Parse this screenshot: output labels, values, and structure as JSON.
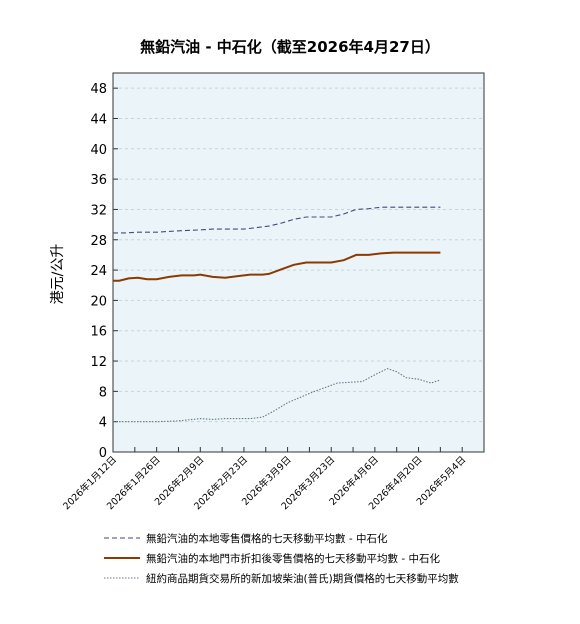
{
  "chart_data": {
    "type": "line",
    "title": "無鉛汽油 - 中石化（截至2026年4月27日）",
    "ylabel": "港元/公升",
    "ylim": [
      0,
      50
    ],
    "yticks": [
      0,
      4,
      8,
      12,
      16,
      20,
      24,
      28,
      32,
      36,
      40,
      44,
      48
    ],
    "xlim": [
      "2026-01-12",
      "2026-05-11"
    ],
    "xtick_labels": [
      "2026年1月12日",
      "2026年1月26日",
      "2026年2月9日",
      "2026年2月23日",
      "2026年3月9日",
      "2026年3月23日",
      "2026年4月6日",
      "2026年4月20日",
      "2026年5月4日"
    ],
    "xtick_dates": [
      "2026-01-12",
      "2026-01-26",
      "2026-02-09",
      "2026-02-23",
      "2026-03-09",
      "2026-03-23",
      "2026-04-06",
      "2026-04-20",
      "2026-05-04"
    ],
    "grid": "horizontal dashed",
    "legend_position": "bottom",
    "series": [
      {
        "name": "無鉛汽油的本地零售價格的七天移動平均數 - 中石化",
        "style": "dashed",
        "color": "#4a4a7a",
        "points": [
          [
            "2026-01-12",
            28.9
          ],
          [
            "2026-01-16",
            28.9
          ],
          [
            "2026-01-20",
            29.0
          ],
          [
            "2026-01-26",
            29.0
          ],
          [
            "2026-01-30",
            29.1
          ],
          [
            "2026-02-03",
            29.2
          ],
          [
            "2026-02-09",
            29.3
          ],
          [
            "2026-02-13",
            29.4
          ],
          [
            "2026-02-17",
            29.4
          ],
          [
            "2026-02-23",
            29.4
          ],
          [
            "2026-02-27",
            29.6
          ],
          [
            "2026-03-03",
            29.8
          ],
          [
            "2026-03-07",
            30.2
          ],
          [
            "2026-03-11",
            30.7
          ],
          [
            "2026-03-15",
            31.0
          ],
          [
            "2026-03-19",
            31.0
          ],
          [
            "2026-03-23",
            31.0
          ],
          [
            "2026-03-27",
            31.4
          ],
          [
            "2026-03-31",
            32.0
          ],
          [
            "2026-04-04",
            32.1
          ],
          [
            "2026-04-08",
            32.3
          ],
          [
            "2026-04-14",
            32.3
          ],
          [
            "2026-04-20",
            32.3
          ],
          [
            "2026-04-27",
            32.3
          ]
        ]
      },
      {
        "name": "無鉛汽油的本地門市折扣後零售價格的七天移動平均數 - 中石化",
        "style": "solid",
        "color": "#8b3a00",
        "points": [
          [
            "2026-01-12",
            22.6
          ],
          [
            "2026-01-14",
            22.6
          ],
          [
            "2026-01-17",
            22.9
          ],
          [
            "2026-01-20",
            23.0
          ],
          [
            "2026-01-23",
            22.8
          ],
          [
            "2026-01-26",
            22.8
          ],
          [
            "2026-01-30",
            23.1
          ],
          [
            "2026-02-03",
            23.3
          ],
          [
            "2026-02-07",
            23.3
          ],
          [
            "2026-02-09",
            23.4
          ],
          [
            "2026-02-13",
            23.1
          ],
          [
            "2026-02-17",
            23.0
          ],
          [
            "2026-02-21",
            23.2
          ],
          [
            "2026-02-25",
            23.4
          ],
          [
            "2026-03-01",
            23.4
          ],
          [
            "2026-03-03",
            23.5
          ],
          [
            "2026-03-07",
            24.1
          ],
          [
            "2026-03-11",
            24.7
          ],
          [
            "2026-03-15",
            25.0
          ],
          [
            "2026-03-19",
            25.0
          ],
          [
            "2026-03-23",
            25.0
          ],
          [
            "2026-03-27",
            25.3
          ],
          [
            "2026-03-31",
            26.0
          ],
          [
            "2026-04-04",
            26.0
          ],
          [
            "2026-04-08",
            26.2
          ],
          [
            "2026-04-12",
            26.3
          ],
          [
            "2026-04-20",
            26.3
          ],
          [
            "2026-04-27",
            26.3
          ]
        ]
      },
      {
        "name": "紐約商品期貨交易所的新加坡柴油(普氏)期貨價格的七天移動平均數",
        "style": "dotted",
        "color": "#6a7a8a",
        "points": [
          [
            "2026-01-12",
            4.0
          ],
          [
            "2026-01-19",
            4.0
          ],
          [
            "2026-01-26",
            4.0
          ],
          [
            "2026-02-02",
            4.1
          ],
          [
            "2026-02-09",
            4.4
          ],
          [
            "2026-02-13",
            4.3
          ],
          [
            "2026-02-17",
            4.4
          ],
          [
            "2026-02-25",
            4.4
          ],
          [
            "2026-03-01",
            4.6
          ],
          [
            "2026-03-05",
            5.5
          ],
          [
            "2026-03-09",
            6.5
          ],
          [
            "2026-03-13",
            7.2
          ],
          [
            "2026-03-17",
            7.9
          ],
          [
            "2026-03-21",
            8.5
          ],
          [
            "2026-03-25",
            9.1
          ],
          [
            "2026-03-29",
            9.2
          ],
          [
            "2026-04-02",
            9.3
          ],
          [
            "2026-04-06",
            10.2
          ],
          [
            "2026-04-10",
            11.0
          ],
          [
            "2026-04-13",
            10.6
          ],
          [
            "2026-04-16",
            9.8
          ],
          [
            "2026-04-20",
            9.6
          ],
          [
            "2026-04-24",
            9.1
          ],
          [
            "2026-04-27",
            9.5
          ]
        ]
      }
    ]
  }
}
